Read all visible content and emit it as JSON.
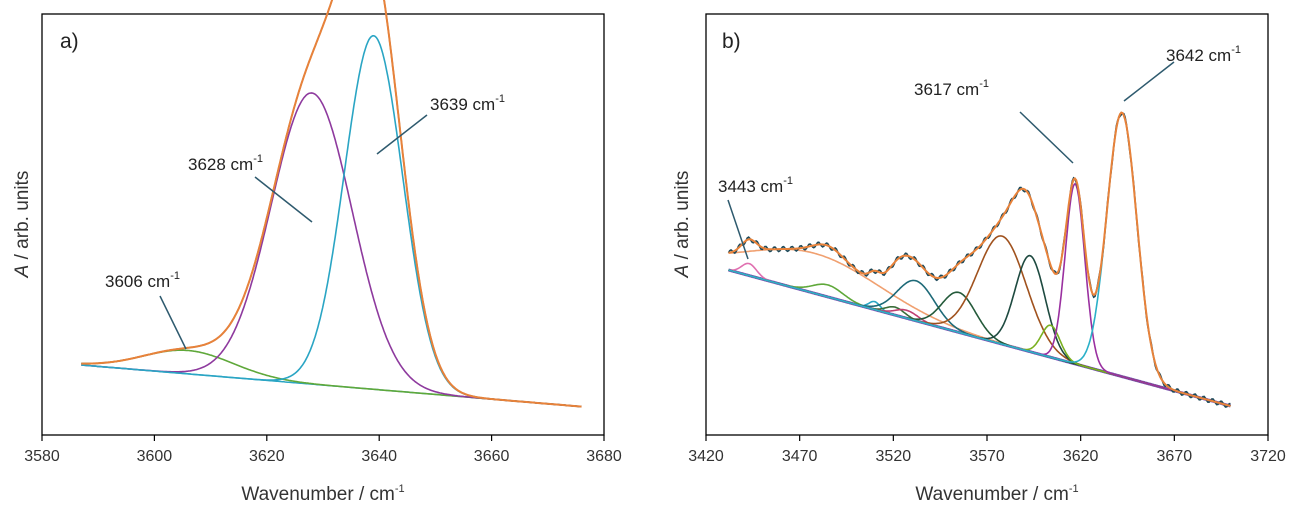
{
  "chart_data": [
    {
      "type": "line",
      "panel_label": "a)",
      "xlabel": "Wavenumber / cm-1",
      "xlabel_base": "Wavenumber / cm",
      "xlabel_sup": "-1",
      "ylabel_italic": "A",
      "ylabel_rest": " / arb. units",
      "xlim": [
        3580,
        3680
      ],
      "xticks": [
        "3580",
        "3600",
        "3620",
        "3640",
        "3660",
        "3680"
      ],
      "x_range": [
        3587,
        3676
      ],
      "baseline": {
        "x": [
          3587,
          3676
        ],
        "y": [
          0.08,
          0.0
        ]
      },
      "peaks": [
        {
          "center": 3606,
          "height": 0.045,
          "sigma": 8,
          "color": "#5fa83a"
        },
        {
          "center": 3628,
          "height": 0.56,
          "sigma": 7.2,
          "color": "#8e3a9e"
        },
        {
          "center": 3639,
          "height": 0.68,
          "sigma": 5.2,
          "color": "#2aa5c4"
        }
      ],
      "sum_colors": [
        "#2e4f5f",
        "#e8823a"
      ],
      "sum_peak_at": 3637,
      "grid": false,
      "annotations": [
        {
          "text": "3606 cm",
          "sup": "-1",
          "peak_x": 3606
        },
        {
          "text": "3628 cm",
          "sup": "-1",
          "peak_x": 3628
        },
        {
          "text": "3639 cm",
          "sup": "-1",
          "peak_x": 3639
        }
      ]
    },
    {
      "type": "line",
      "panel_label": "b)",
      "xlabel": "Wavenumber / cm-1",
      "xlabel_base": "Wavenumber / cm",
      "xlabel_sup": "-1",
      "ylabel_italic": "A",
      "ylabel_rest": " / arb. units",
      "xlim": [
        3420,
        3720
      ],
      "xticks": [
        "3420",
        "3470",
        "3520",
        "3570",
        "3620",
        "3670",
        "3720"
      ],
      "x_range": [
        3432,
        3700
      ],
      "baseline": {
        "x": [
          3432,
          3700
        ],
        "y": [
          0.34,
          0.0
        ]
      },
      "peaks": [
        {
          "center": 3443,
          "height": 0.03,
          "sigma": 4,
          "color": "#e070b0"
        },
        {
          "center": 3478,
          "height": 0.1,
          "sigma": 35,
          "color": "#f0a070"
        },
        {
          "center": 3485,
          "height": 0.03,
          "sigma": 8,
          "color": "#5fa83a"
        },
        {
          "center": 3510,
          "height": 0.02,
          "sigma": 3,
          "color": "#2aa5c4"
        },
        {
          "center": 3521,
          "height": 0.02,
          "sigma": 5,
          "color": "#3a6e3a"
        },
        {
          "center": 3527,
          "height": 0.02,
          "sigma": 6,
          "color": "#c04070"
        },
        {
          "center": 3532,
          "height": 0.1,
          "sigma": 10,
          "color": "#1e6a78"
        },
        {
          "center": 3555,
          "height": 0.1,
          "sigma": 9,
          "color": "#245a3a"
        },
        {
          "center": 3578,
          "height": 0.27,
          "sigma": 13,
          "color": "#a0521e"
        },
        {
          "center": 3593,
          "height": 0.24,
          "sigma": 8,
          "color": "#1e4a40"
        },
        {
          "center": 3604,
          "height": 0.08,
          "sigma": 5,
          "color": "#7ab020"
        },
        {
          "center": 3617,
          "height": 0.45,
          "sigma": 5.2,
          "color": "#9a30a0"
        },
        {
          "center": 3642,
          "height": 0.66,
          "sigma": 8,
          "color": "#2ab0c8"
        }
      ],
      "sum_colors": [
        "#1e4a5a",
        "#e8823a"
      ],
      "grid": false,
      "annotations": [
        {
          "text": "3443 cm",
          "sup": "-1",
          "peak_x": 3443
        },
        {
          "text": "3617 cm",
          "sup": "-1",
          "peak_x": 3617
        },
        {
          "text": "3642 cm",
          "sup": "-1",
          "peak_x": 3642
        }
      ]
    }
  ]
}
